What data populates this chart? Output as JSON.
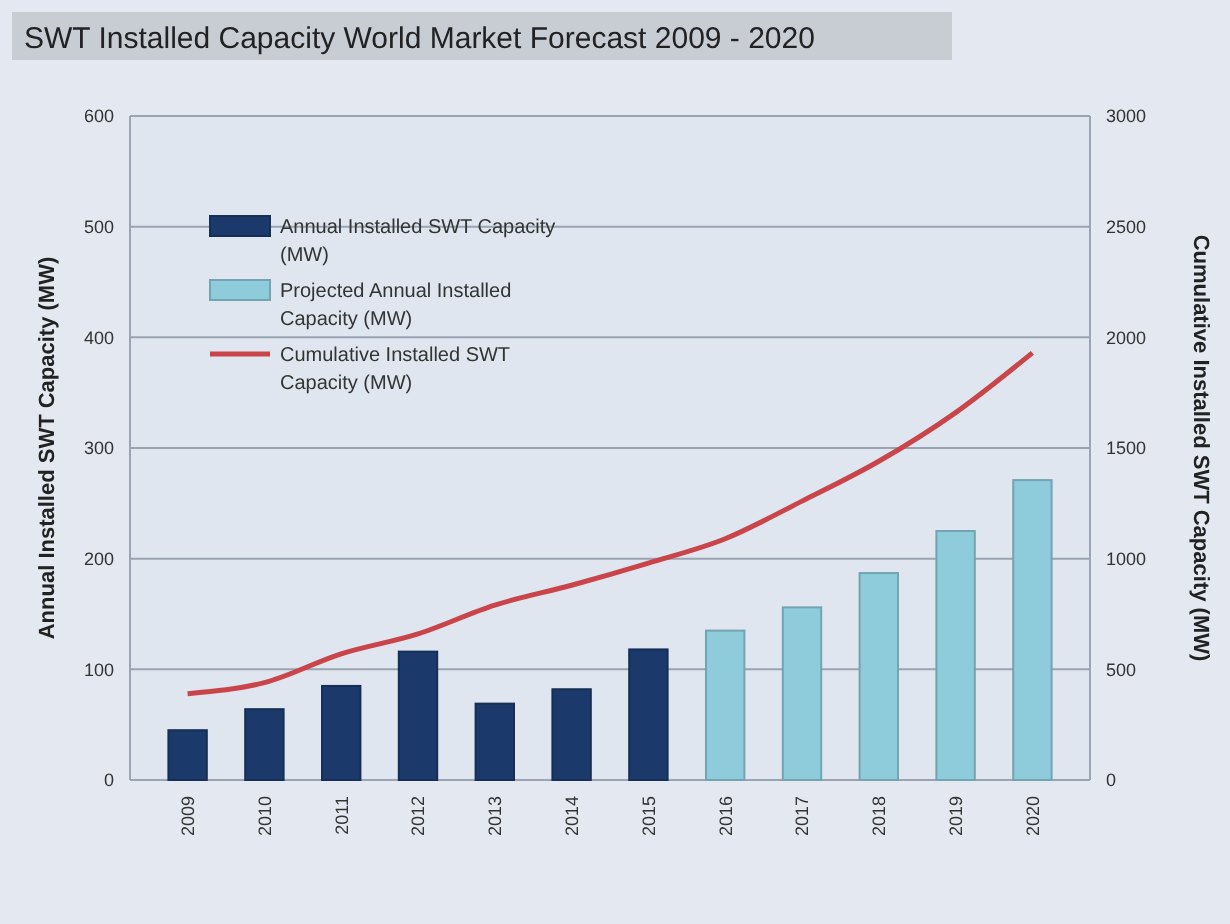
{
  "chart_data": {
    "type": "bar",
    "title": "SWT Installed Capacity World Market Forecast 2009 - 2020",
    "ylabel": "Annual Installed SWT Capacity (MW)",
    "y2label": "Cumulative Installed SWT Capacity (MW)",
    "categories": [
      "2009",
      "2010",
      "2011",
      "2012",
      "2013",
      "2014",
      "2015",
      "2016",
      "2017",
      "2018",
      "2019",
      "2020"
    ],
    "series": [
      {
        "name": "Annual Installed SWT Capacity (MW)",
        "color": "#1b3a6b",
        "values": [
          45,
          64,
          85,
          116,
          69,
          82,
          118,
          null,
          null,
          null,
          null,
          null
        ]
      },
      {
        "name": "Projected Annual Installed Capacity (MW)",
        "color": "#8ecbdb",
        "values": [
          null,
          null,
          null,
          null,
          null,
          null,
          null,
          135,
          156,
          187,
          225,
          271
        ]
      },
      {
        "name": "Cumulative Installed SWT Capacity (MW)",
        "type": "line",
        "axis": "y2",
        "color": "#c9454a",
        "values": [
          390,
          440,
          570,
          660,
          790,
          880,
          980,
          1090,
          1260,
          1440,
          1660,
          1930
        ]
      }
    ],
    "ylim": [
      0,
      600
    ],
    "yticks": [
      0,
      100,
      200,
      300,
      400,
      500,
      600
    ],
    "y2lim": [
      0,
      3000
    ],
    "y2ticks": [
      0,
      500,
      1000,
      1500,
      2000,
      2500,
      3000
    ],
    "grid": "y",
    "legend": "top left",
    "marker": "none",
    "line_style": "solid"
  }
}
